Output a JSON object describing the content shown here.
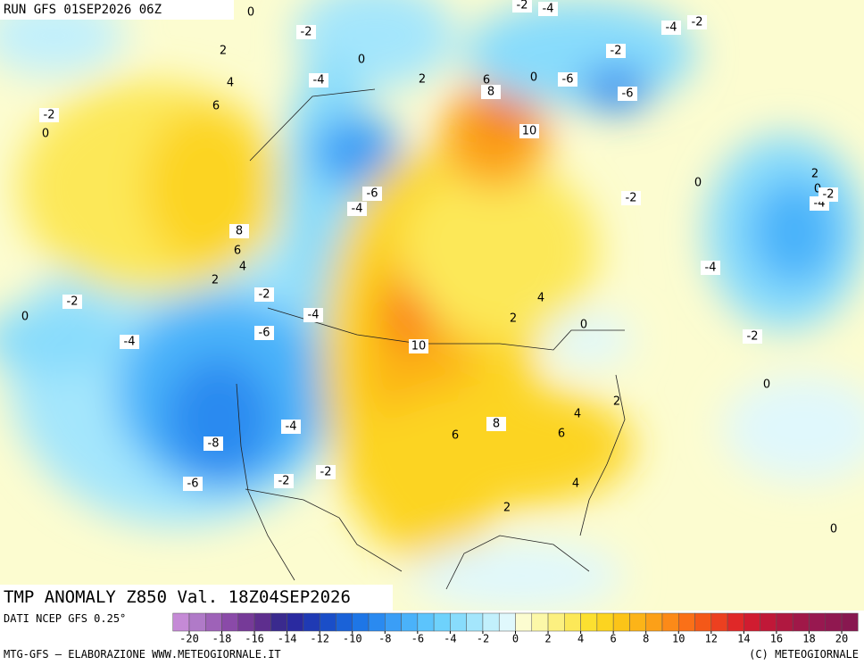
{
  "header": {
    "title": "RUN GFS 01SEP2026 06Z"
  },
  "map": {
    "title": "TMP ANOMALY Z850 Val. 18Z04SEP2026",
    "contour_labels": [
      0,
      -2,
      -4,
      -2,
      -4,
      -2,
      2,
      0,
      -2,
      4,
      -4,
      2,
      6,
      8,
      0,
      -6,
      -6,
      6,
      -2,
      0,
      10,
      0,
      2,
      0,
      -4,
      -2,
      -6,
      -4,
      -2,
      8,
      6,
      4,
      -4,
      2,
      -2,
      4,
      0,
      -2,
      -4,
      2,
      0,
      -6,
      -4,
      10,
      -2,
      0,
      2,
      4,
      8,
      -4,
      6,
      6,
      -8,
      -2,
      -2,
      -6,
      4,
      2,
      0
    ]
  },
  "colorbar": {
    "source": "DATI NCEP GFS 0.25°",
    "lim": [
      -21,
      21
    ],
    "ticks": [
      -20,
      -18,
      -16,
      -14,
      -12,
      -10,
      -8,
      -6,
      -4,
      -2,
      0,
      2,
      4,
      6,
      8,
      10,
      12,
      14,
      16,
      18,
      20
    ],
    "colors": [
      "#c58ad6",
      "#b07ac8",
      "#9e62b8",
      "#8a4aa8",
      "#763a98",
      "#5e2e8e",
      "#3a2a8e",
      "#2a2aa0",
      "#1f3ab4",
      "#1a4ec8",
      "#1a62d8",
      "#1e76e6",
      "#2a8af0",
      "#3a9ef6",
      "#4ab2fa",
      "#5cc4fc",
      "#6ed2fc",
      "#88dcfc",
      "#a4e6fc",
      "#c2f0fc",
      "#e0f8fc",
      "#fcfcd0",
      "#fcf8a8",
      "#fcf080",
      "#fce858",
      "#fce030",
      "#fcd420",
      "#fcc418",
      "#fcb418",
      "#fca018",
      "#fc8a18",
      "#fa7018",
      "#f45818",
      "#ec4020",
      "#e02828",
      "#d01c30",
      "#c01838",
      "#b01840",
      "#a01848",
      "#981850",
      "#901850",
      "#881850"
    ]
  },
  "footer": {
    "left": "MTG-GFS — ELABORAZIONE WWW.METEOGIORNALE.IT",
    "right": "(C) METEOGIORNALE"
  }
}
